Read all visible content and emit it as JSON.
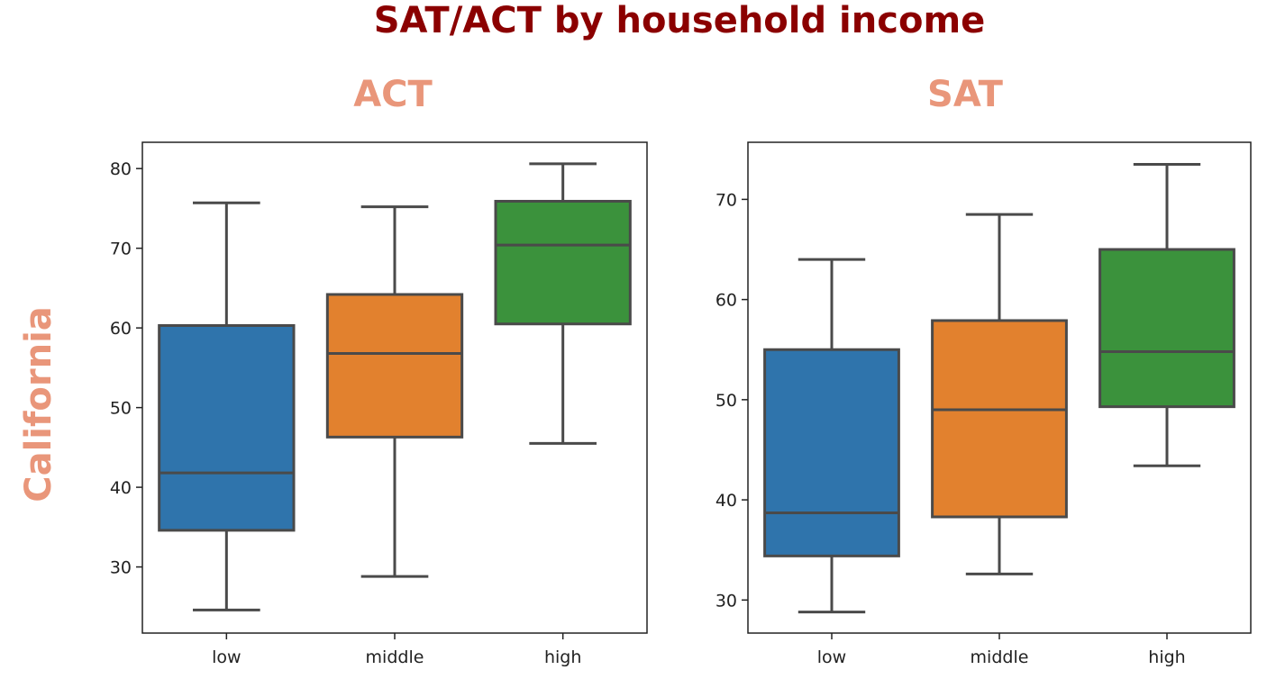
{
  "figure": {
    "title": "SAT/ACT by household income",
    "row_label": "California",
    "title_color": "#8b0000",
    "label_color": "#e9967a"
  },
  "chart_data": [
    {
      "type": "box",
      "title": "ACT",
      "xlabel": "",
      "ylabel": "",
      "categories": [
        "low",
        "middle",
        "high"
      ],
      "colors": [
        "#2f74ac",
        "#e2812e",
        "#3b923c"
      ],
      "ylim": [
        21.7,
        83.3
      ],
      "yticks": [
        30,
        40,
        50,
        60,
        70,
        80
      ],
      "boxes": [
        {
          "whislo": 24.6,
          "q1": 34.6,
          "med": 41.8,
          "q3": 60.3,
          "whishi": 75.7
        },
        {
          "whislo": 28.8,
          "q1": 46.3,
          "med": 56.8,
          "q3": 64.2,
          "whishi": 75.2
        },
        {
          "whislo": 45.5,
          "q1": 60.5,
          "med": 70.4,
          "q3": 75.9,
          "whishi": 80.6
        }
      ]
    },
    {
      "type": "box",
      "title": "SAT",
      "xlabel": "",
      "ylabel": "",
      "categories": [
        "low",
        "middle",
        "high"
      ],
      "colors": [
        "#2f74ac",
        "#e2812e",
        "#3b923c"
      ],
      "ylim": [
        26.7,
        75.7
      ],
      "yticks": [
        30,
        40,
        50,
        60,
        70
      ],
      "boxes": [
        {
          "whislo": 28.8,
          "q1": 34.4,
          "med": 38.7,
          "q3": 55.0,
          "whishi": 64.0
        },
        {
          "whislo": 32.6,
          "q1": 38.3,
          "med": 49.0,
          "q3": 57.9,
          "whishi": 68.5
        },
        {
          "whislo": 43.4,
          "q1": 49.3,
          "med": 54.8,
          "q3": 65.0,
          "whishi": 73.5
        }
      ]
    }
  ]
}
